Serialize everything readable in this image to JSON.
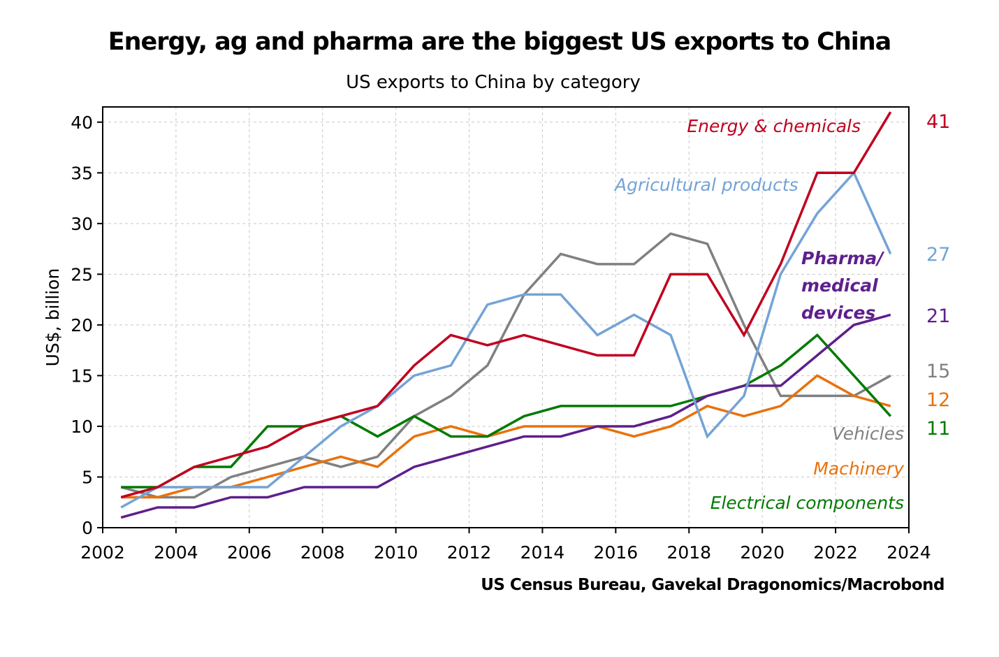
{
  "chart_data": {
    "type": "line",
    "title": "Energy, ag and pharma are the biggest US exports to China",
    "subtitle": "US exports to China by category",
    "source": "US Census Bureau, Gavekal Dragonomics/Macrobond",
    "xlabel": "",
    "ylabel": "US$, billion",
    "xlim": [
      2002,
      2024
    ],
    "ylim": [
      0,
      41.5
    ],
    "xticks": [
      "2002",
      "2004",
      "2006",
      "2008",
      "2010",
      "2012",
      "2014",
      "2016",
      "2018",
      "2020",
      "2022",
      "2024"
    ],
    "yticks": [
      "0",
      "5",
      "10",
      "15",
      "20",
      "25",
      "30",
      "35",
      "40"
    ],
    "grid": true,
    "x": [
      2002.5,
      2003.5,
      2004.5,
      2005.5,
      2006.5,
      2007.5,
      2008.5,
      2009.5,
      2010.5,
      2011.5,
      2012.5,
      2013.5,
      2014.5,
      2015.5,
      2016.5,
      2017.5,
      2018.5,
      2019.5,
      2020.5,
      2021.5,
      2022.5,
      2023.5
    ],
    "series": [
      {
        "name": "Vehicles",
        "color": "#808080",
        "end_label": "15",
        "values": [
          4,
          3,
          3,
          5,
          6,
          7,
          6,
          7,
          11,
          13,
          16,
          23,
          27,
          26,
          26,
          29,
          28,
          20,
          13,
          13,
          13,
          15
        ]
      },
      {
        "name": "Machinery",
        "color": "#e8720c",
        "end_label": "12",
        "values": [
          3,
          3,
          4,
          4,
          5,
          6,
          7,
          6,
          9,
          10,
          9,
          10,
          10,
          10,
          9,
          10,
          12,
          11,
          12,
          15,
          13,
          12
        ]
      },
      {
        "name": "Electrical components",
        "color": "#007a00",
        "end_label": "11",
        "values": [
          4,
          4,
          6,
          6,
          10,
          10,
          11,
          9,
          11,
          9,
          9,
          11,
          12,
          12,
          12,
          12,
          13,
          14,
          16,
          19,
          15,
          11
        ]
      },
      {
        "name": "Pharma/ medical devices",
        "color": "#5e1f8c",
        "end_label": "21",
        "values": [
          1,
          2,
          2,
          3,
          3,
          4,
          4,
          4,
          6,
          7,
          8,
          9,
          9,
          10,
          10,
          11,
          13,
          14,
          14,
          17,
          20,
          21
        ]
      },
      {
        "name": "Agricultural products",
        "color": "#74a3d6",
        "end_label": "27",
        "values": [
          2,
          4,
          4,
          4,
          4,
          7,
          10,
          12,
          15,
          16,
          22,
          23,
          23,
          19,
          21,
          19,
          9,
          13,
          25,
          31,
          35,
          27
        ]
      },
      {
        "name": "Energy & chemicals",
        "color": "#c0001f",
        "end_label": "41",
        "values": [
          3,
          4,
          6,
          7,
          8,
          10,
          11,
          12,
          16,
          19,
          18,
          19,
          18,
          17,
          17,
          25,
          25,
          19,
          26,
          35,
          35,
          41
        ]
      }
    ],
    "legend": "inline labels near line ends"
  }
}
